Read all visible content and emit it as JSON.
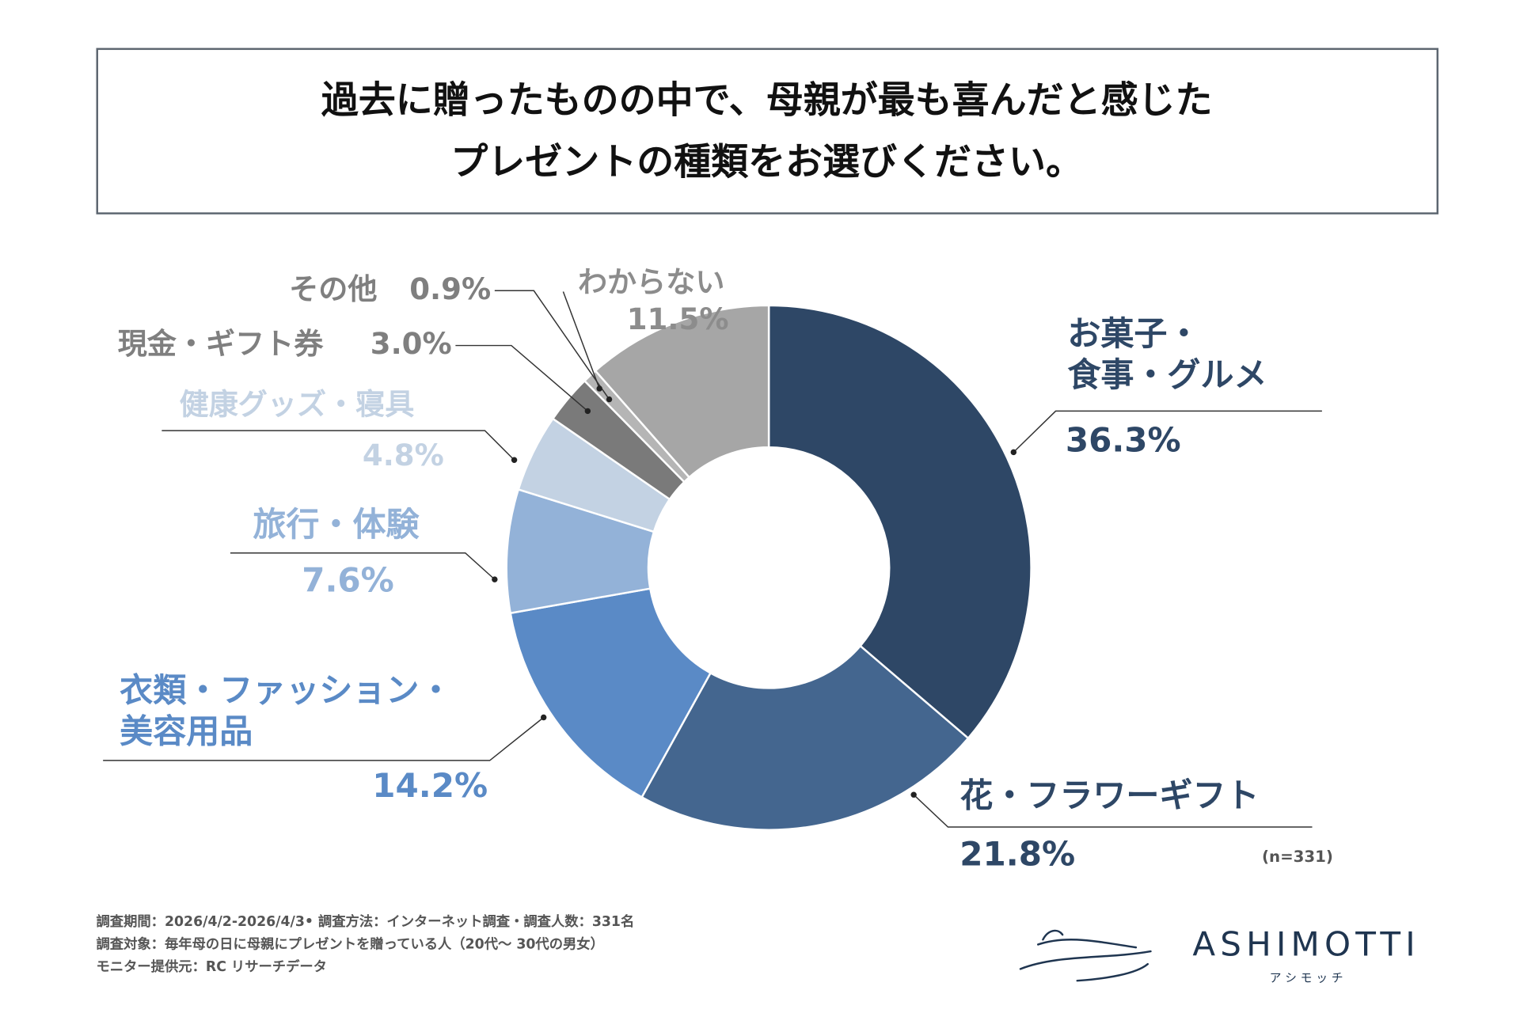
{
  "chart_data": {
    "type": "pie",
    "title": "過去に贈ったものの中で、母親が最も喜んだと感じた",
    "subtitle": "プレゼントの種類をお選びください。",
    "categories": [
      "お菓子・\n食事・グルメ",
      "花・フラワーギフト",
      "衣類・ファッション・\n美容用品",
      "旅行・体験",
      "健康グッズ・寝具",
      "現金・ギフト券",
      "その他",
      "わからない"
    ],
    "values": [
      36.3,
      21.8,
      14.2,
      7.6,
      4.8,
      3.0,
      0.9,
      11.5
    ],
    "value_labels": [
      "36.3%",
      "21.8%",
      "14.2%",
      "7.6%",
      "4.8%",
      "3.0%",
      "0.9%",
      "11.5%"
    ],
    "colors": [
      "#2e4766",
      "#44668f",
      "#5a8ac6",
      "#93b2d8",
      "#c3d2e3",
      "#7a7a7a",
      "#b5b5b5",
      "#a6a6a6"
    ],
    "donut": true,
    "note": "(n=331)",
    "footnotes": [
      "調査期間：2026/4/2-2026/4/3• 調査方法：インターネット調査・調査人数：331名",
      "調査対象：毎年母の日に母親にプレゼントを贈っている人（20代〜 30代の男女）",
      "モニター提供元：RC リサーチデータ"
    ],
    "brand": "ASHIMOTTI",
    "brand_sub": "ア シ モ ッ チ"
  }
}
